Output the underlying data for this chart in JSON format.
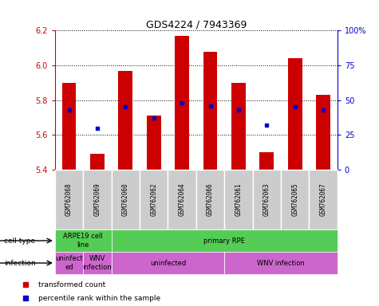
{
  "title": "GDS4224 / 7943369",
  "samples": [
    "GSM762068",
    "GSM762069",
    "GSM762060",
    "GSM762062",
    "GSM762064",
    "GSM762066",
    "GSM762061",
    "GSM762063",
    "GSM762065",
    "GSM762067"
  ],
  "transformed_count": [
    5.9,
    5.49,
    5.97,
    5.71,
    6.17,
    6.08,
    5.9,
    5.5,
    6.04,
    5.83
  ],
  "percentile_rank": [
    43,
    30,
    45,
    37,
    48,
    46,
    43,
    32,
    45,
    43
  ],
  "ylim_left": [
    5.4,
    6.2
  ],
  "ylim_right": [
    0,
    100
  ],
  "yticks_left": [
    5.4,
    5.6,
    5.8,
    6.0,
    6.2
  ],
  "yticks_right": [
    0,
    25,
    50,
    75,
    100
  ],
  "ytick_labels_right": [
    "0",
    "25",
    "50",
    "75",
    "100%"
  ],
  "bar_color": "#cc0000",
  "dot_color": "#0000cc",
  "bar_bottom": 5.4,
  "bar_width": 0.5,
  "cell_type_labels": [
    {
      "text": "ARPE19 cell\nline",
      "xstart": 0,
      "xend": 2
    },
    {
      "text": "primary RPE",
      "xstart": 2,
      "xend": 10
    }
  ],
  "cell_type_color": "#55cc55",
  "infection_labels": [
    {
      "text": "uninfect\ned",
      "xstart": 0,
      "xend": 1
    },
    {
      "text": "WNV\ninfection",
      "xstart": 1,
      "xend": 2
    },
    {
      "text": "uninfected",
      "xstart": 2,
      "xend": 6
    },
    {
      "text": "WNV infection",
      "xstart": 6,
      "xend": 10
    }
  ],
  "infection_color": "#cc66cc",
  "legend_items": [
    {
      "label": "transformed count",
      "color": "#cc0000"
    },
    {
      "label": "percentile rank within the sample",
      "color": "#0000cc"
    }
  ],
  "tick_color_left": "#cc0000",
  "tick_color_right": "#0000cc",
  "sample_box_color": "#cccccc",
  "sample_box_edge": "#ffffff"
}
